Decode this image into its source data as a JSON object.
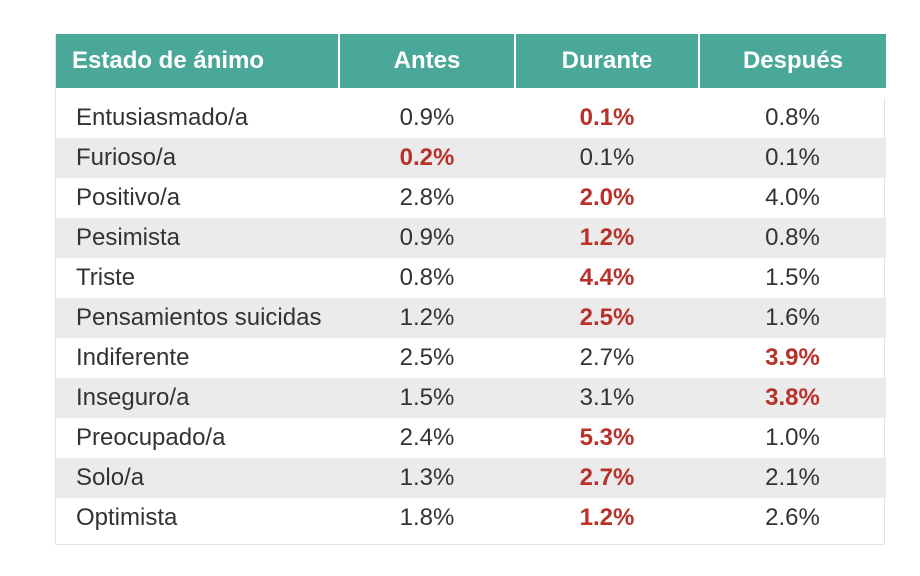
{
  "chart_data": {
    "type": "table",
    "columns": [
      "Estado de ánimo",
      "Antes",
      "Durante",
      "Después"
    ],
    "rows": [
      {
        "label": "Entusiasmado/a",
        "values": [
          "0.9%",
          "0.1%",
          "0.8%"
        ],
        "highlight": [
          false,
          true,
          false
        ]
      },
      {
        "label": "Furioso/a",
        "values": [
          "0.2%",
          "0.1%",
          "0.1%"
        ],
        "highlight": [
          true,
          false,
          false
        ]
      },
      {
        "label": "Positivo/a",
        "values": [
          "2.8%",
          "2.0%",
          "4.0%"
        ],
        "highlight": [
          false,
          true,
          false
        ]
      },
      {
        "label": "Pesimista",
        "values": [
          "0.9%",
          "1.2%",
          "0.8%"
        ],
        "highlight": [
          false,
          true,
          false
        ]
      },
      {
        "label": "Triste",
        "values": [
          "0.8%",
          "4.4%",
          "1.5%"
        ],
        "highlight": [
          false,
          true,
          false
        ]
      },
      {
        "label": "Pensamientos suicidas",
        "values": [
          "1.2%",
          "2.5%",
          "1.6%"
        ],
        "highlight": [
          false,
          true,
          false
        ]
      },
      {
        "label": "Indiferente",
        "values": [
          "2.5%",
          "2.7%",
          "3.9%"
        ],
        "highlight": [
          false,
          false,
          true
        ]
      },
      {
        "label": "Inseguro/a",
        "values": [
          "1.5%",
          "3.1%",
          "3.8%"
        ],
        "highlight": [
          false,
          false,
          true
        ]
      },
      {
        "label": "Preocupado/a",
        "values": [
          "2.4%",
          "5.3%",
          "1.0%"
        ],
        "highlight": [
          false,
          true,
          false
        ]
      },
      {
        "label": "Solo/a",
        "values": [
          "1.3%",
          "2.7%",
          "2.1%"
        ],
        "highlight": [
          false,
          true,
          false
        ]
      },
      {
        "label": "Optimista",
        "values": [
          "1.8%",
          "1.2%",
          "2.6%"
        ],
        "highlight": [
          false,
          true,
          false
        ]
      }
    ],
    "colors": {
      "header_bg": "#4aa898",
      "header_text": "#ffffff",
      "highlight_text": "#b8322a",
      "shaded_row": "#ebebeb",
      "body_text": "#333333"
    }
  }
}
